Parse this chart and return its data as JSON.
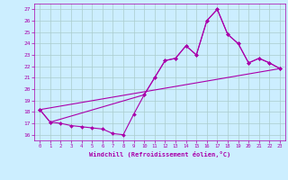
{
  "xlabel": "Windchill (Refroidissement éolien,°C)",
  "background_color": "#cceeff",
  "grid_color": "#aacccc",
  "line_color": "#aa00aa",
  "xlim": [
    -0.5,
    23.5
  ],
  "ylim": [
    15.5,
    27.5
  ],
  "yticks": [
    16,
    17,
    18,
    19,
    20,
    21,
    22,
    23,
    24,
    25,
    26,
    27
  ],
  "xticks": [
    0,
    1,
    2,
    3,
    4,
    5,
    6,
    7,
    8,
    9,
    10,
    11,
    12,
    13,
    14,
    15,
    16,
    17,
    18,
    19,
    20,
    21,
    22,
    23
  ],
  "line1_x": [
    0,
    1,
    2,
    3,
    4,
    5,
    6,
    7,
    8,
    9,
    10,
    11,
    12,
    13,
    14,
    15,
    16,
    17,
    18,
    19,
    20,
    21,
    22,
    23
  ],
  "line1_y": [
    18.2,
    17.1,
    17.0,
    16.8,
    16.7,
    16.6,
    16.5,
    16.1,
    16.0,
    17.8,
    19.5,
    21.0,
    22.5,
    22.7,
    23.8,
    23.0,
    26.0,
    27.0,
    24.8,
    24.0,
    22.3,
    22.7,
    22.3,
    21.8
  ],
  "line2_x": [
    0,
    1,
    10,
    11,
    12,
    13,
    14,
    15,
    16,
    17,
    18,
    19,
    20,
    21,
    22,
    23
  ],
  "line2_y": [
    18.2,
    17.1,
    19.5,
    21.0,
    22.5,
    22.7,
    23.8,
    23.0,
    26.0,
    27.0,
    24.8,
    24.0,
    22.3,
    22.7,
    22.3,
    21.8
  ],
  "line3_x": [
    0,
    23
  ],
  "line3_y": [
    18.2,
    21.8
  ]
}
